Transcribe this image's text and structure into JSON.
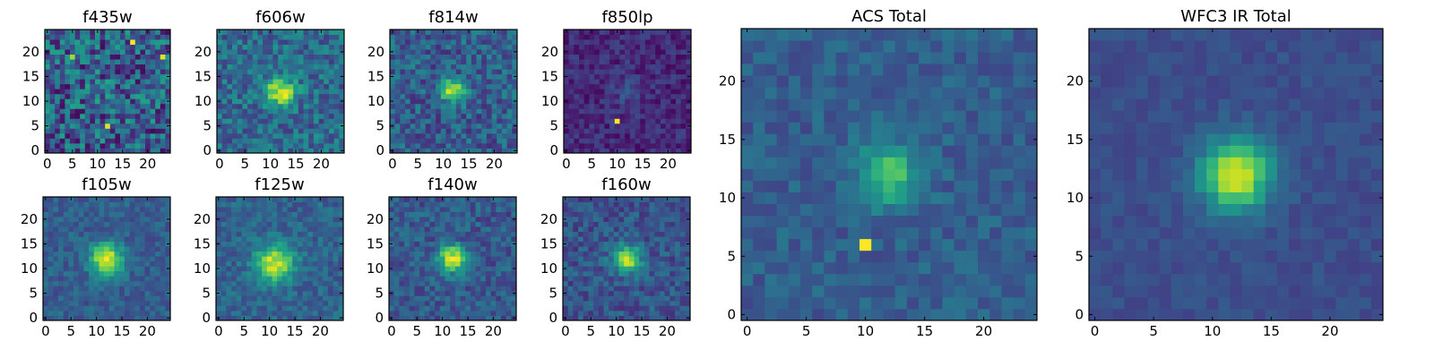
{
  "chart_data": [
    {
      "type": "heatmap",
      "title": "f435w",
      "xlim": [
        -0.5,
        24.5
      ],
      "ylim": [
        -0.5,
        24.5
      ],
      "xticks": [
        "0",
        "5",
        "10",
        "15",
        "20"
      ],
      "yticks": [
        "0",
        "5",
        "10",
        "15",
        "20"
      ],
      "source": {
        "cx": 12,
        "cy": 12,
        "amplitude": 0.05,
        "sigma": 3.0
      },
      "noise": 0.55,
      "base": 0.3,
      "hot_pixels": [
        {
          "x": 17,
          "y": 22,
          "v": 1.0
        },
        {
          "x": 12,
          "y": 5,
          "v": 0.95
        },
        {
          "x": 23,
          "y": 19,
          "v": 0.95
        },
        {
          "x": 5,
          "y": 19,
          "v": 0.85
        }
      ],
      "seed": 11
    },
    {
      "type": "heatmap",
      "title": "f606w",
      "xlim": [
        -0.5,
        24.5
      ],
      "ylim": [
        -0.5,
        24.5
      ],
      "xticks": [
        "0",
        "5",
        "10",
        "15",
        "20"
      ],
      "yticks": [
        "0",
        "5",
        "10",
        "15",
        "20"
      ],
      "source": {
        "cx": 12,
        "cy": 12,
        "amplitude": 0.6,
        "sigma": 2.0
      },
      "noise": 0.35,
      "base": 0.35,
      "hot_pixels": [],
      "seed": 22
    },
    {
      "type": "heatmap",
      "title": "f814w",
      "xlim": [
        -0.5,
        24.5
      ],
      "ylim": [
        -0.5,
        24.5
      ],
      "xticks": [
        "0",
        "5",
        "10",
        "15",
        "20"
      ],
      "yticks": [
        "0",
        "5",
        "10",
        "15",
        "20"
      ],
      "source": {
        "cx": 12,
        "cy": 12,
        "amplitude": 0.65,
        "sigma": 1.6
      },
      "noise": 0.35,
      "base": 0.3,
      "hot_pixels": [],
      "seed": 33
    },
    {
      "type": "heatmap",
      "title": "f850lp",
      "xlim": [
        -0.5,
        24.5
      ],
      "ylim": [
        -0.5,
        24.5
      ],
      "xticks": [
        "0",
        "5",
        "10",
        "15",
        "20"
      ],
      "yticks": [
        "0",
        "5",
        "10",
        "15",
        "20"
      ],
      "source": {
        "cx": 12,
        "cy": 12,
        "amplitude": 0.12,
        "sigma": 2.0
      },
      "noise": 0.2,
      "base": 0.12,
      "hot_pixels": [
        {
          "x": 10,
          "y": 6,
          "v": 1.0
        }
      ],
      "seed": 44
    },
    {
      "type": "heatmap",
      "title": "f105w",
      "xlim": [
        -0.5,
        24.5
      ],
      "ylim": [
        -0.5,
        24.5
      ],
      "xticks": [
        "0",
        "5",
        "10",
        "15",
        "20"
      ],
      "yticks": [
        "0",
        "5",
        "10",
        "15",
        "20"
      ],
      "source": {
        "cx": 12,
        "cy": 12,
        "amplitude": 0.7,
        "sigma": 2.2
      },
      "noise": 0.2,
      "base": 0.3,
      "hot_pixels": [],
      "seed": 55
    },
    {
      "type": "heatmap",
      "title": "f125w",
      "xlim": [
        -0.5,
        24.5
      ],
      "ylim": [
        -0.5,
        24.5
      ],
      "xticks": [
        "0",
        "5",
        "10",
        "15",
        "20"
      ],
      "yticks": [
        "0",
        "5",
        "10",
        "15",
        "20"
      ],
      "source": {
        "cx": 11,
        "cy": 11,
        "amplitude": 0.62,
        "sigma": 2.6
      },
      "noise": 0.22,
      "base": 0.32,
      "hot_pixels": [],
      "seed": 66
    },
    {
      "type": "heatmap",
      "title": "f140w",
      "xlim": [
        -0.5,
        24.5
      ],
      "ylim": [
        -0.5,
        24.5
      ],
      "xticks": [
        "0",
        "5",
        "10",
        "15",
        "20"
      ],
      "yticks": [
        "0",
        "5",
        "10",
        "15",
        "20"
      ],
      "source": {
        "cx": 12,
        "cy": 12,
        "amplitude": 0.68,
        "sigma": 1.9
      },
      "noise": 0.25,
      "base": 0.28,
      "hot_pixels": [],
      "seed": 77
    },
    {
      "type": "heatmap",
      "title": "f160w",
      "xlim": [
        -0.5,
        24.5
      ],
      "ylim": [
        -0.5,
        24.5
      ],
      "xticks": [
        "0",
        "5",
        "10",
        "15",
        "20"
      ],
      "yticks": [
        "0",
        "5",
        "10",
        "15",
        "20"
      ],
      "source": {
        "cx": 12,
        "cy": 12,
        "amplitude": 0.66,
        "sigma": 1.9
      },
      "noise": 0.25,
      "base": 0.26,
      "hot_pixels": [],
      "seed": 88
    },
    {
      "type": "heatmap",
      "title": "ACS Total",
      "xlim": [
        -0.5,
        24.5
      ],
      "ylim": [
        -0.5,
        24.5
      ],
      "xticks": [
        "0",
        "5",
        "10",
        "15",
        "20"
      ],
      "yticks": [
        "0",
        "5",
        "10",
        "15",
        "20"
      ],
      "source": {
        "cx": 12,
        "cy": 12,
        "amplitude": 0.45,
        "sigma": 1.8
      },
      "noise": 0.18,
      "base": 0.3,
      "hot_pixels": [
        {
          "x": 10,
          "y": 6,
          "v": 1.0
        }
      ],
      "seed": 99
    },
    {
      "type": "heatmap",
      "title": "WFC3 IR Total",
      "xlim": [
        -0.5,
        24.5
      ],
      "ylim": [
        -0.5,
        24.5
      ],
      "xticks": [
        "0",
        "5",
        "10",
        "15",
        "20"
      ],
      "yticks": [
        "0",
        "5",
        "10",
        "15",
        "20"
      ],
      "source": {
        "cx": 12,
        "cy": 12,
        "amplitude": 0.72,
        "sigma": 2.1
      },
      "noise": 0.1,
      "base": 0.24,
      "hot_pixels": [],
      "seed": 123
    }
  ]
}
